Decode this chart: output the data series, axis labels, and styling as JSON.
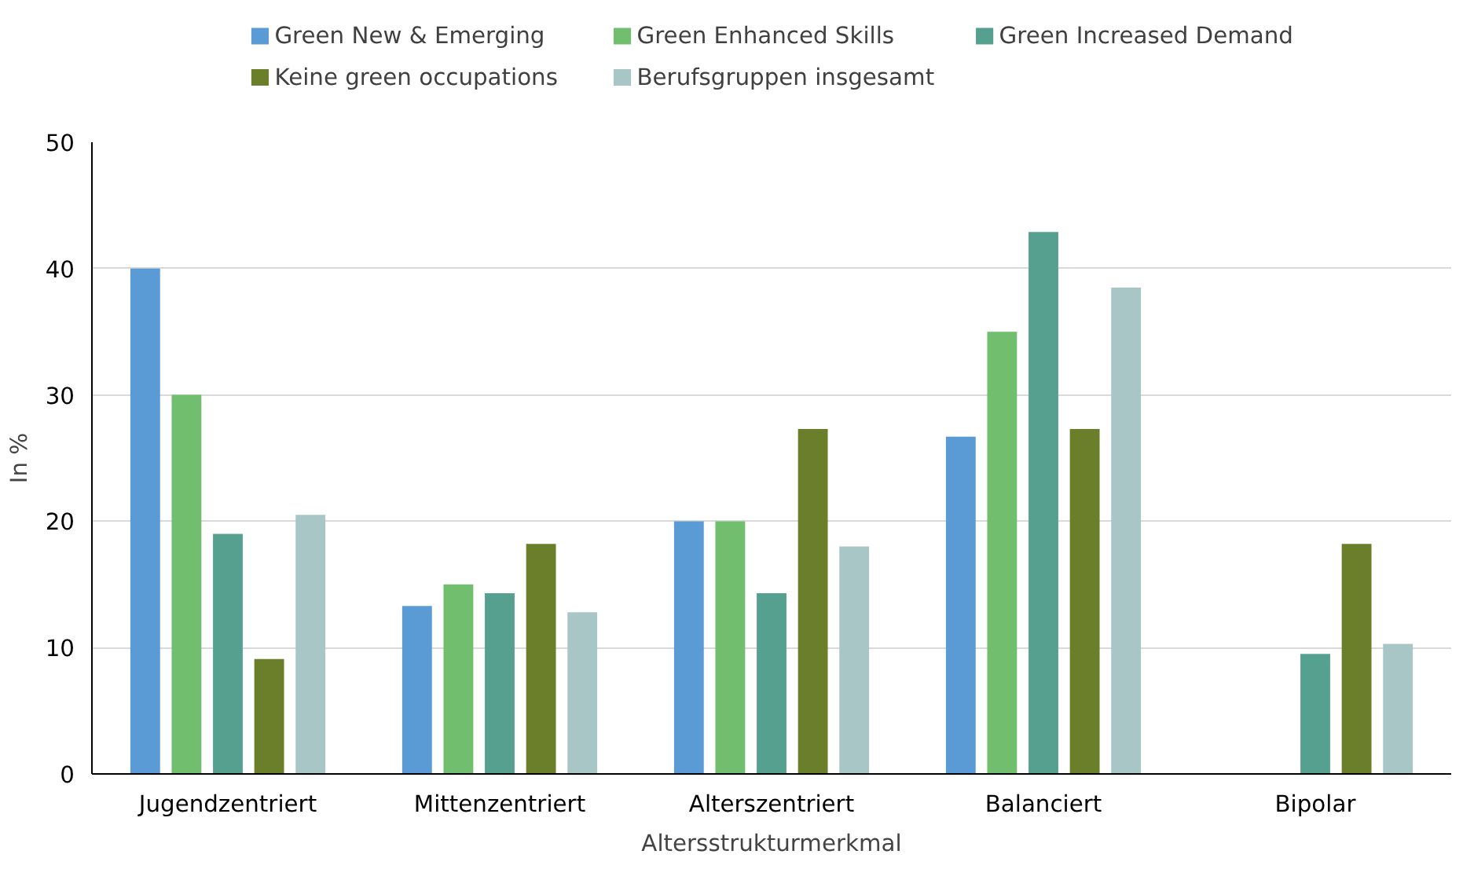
{
  "chart_data": {
    "type": "bar",
    "xlabel": "Altersstrukturmerkmal",
    "ylabel": "In %",
    "categories": [
      "Jugendzentriert",
      "Mittenzentriert",
      "Alterszentriert",
      "Balanciert",
      "Bipolar"
    ],
    "series": [
      {
        "name": "Green New & Emerging",
        "color": "#5b9bd5",
        "values": [
          40,
          13.3,
          20,
          26.7,
          null
        ]
      },
      {
        "name": "Green Enhanced Skills",
        "color": "#71bf6e",
        "values": [
          30,
          15,
          20,
          35,
          null
        ]
      },
      {
        "name": "Green Increased Demand",
        "color": "#56a08f",
        "values": [
          19,
          14.3,
          14.3,
          42.9,
          9.5
        ]
      },
      {
        "name": "Keine green occupations",
        "color": "#6b7f2a",
        "values": [
          9.1,
          18.2,
          27.3,
          27.3,
          18.2
        ]
      },
      {
        "name": "Berufsgruppen insgesamt",
        "color": "#a9c6c6",
        "values": [
          20.5,
          12.8,
          18,
          38.5,
          10.3
        ]
      }
    ],
    "ylim": [
      0,
      50
    ],
    "yticks": [
      0,
      10,
      20,
      30,
      40,
      50
    ],
    "grid": "y",
    "legend": "top"
  }
}
